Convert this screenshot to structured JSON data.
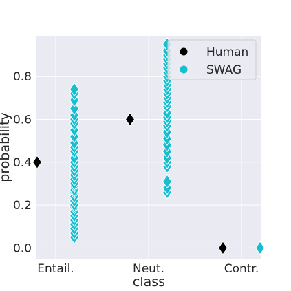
{
  "chart_data": {
    "type": "scatter",
    "xlabel": "class",
    "ylabel": "probability",
    "categories": [
      "Entail.",
      "Neut.",
      "Contr."
    ],
    "ylim": [
      -0.05,
      0.99
    ],
    "yticks": [
      0.0,
      0.2,
      0.4,
      0.6,
      0.8
    ],
    "ytick_labels": [
      "0.0",
      "0.2",
      "0.4",
      "0.6",
      "0.8"
    ],
    "grid": true,
    "legend_position": "top-right",
    "marker": "diamond",
    "series": [
      {
        "name": "Human",
        "color": "#000000",
        "x_offset": -0.2,
        "points": [
          {
            "category": "Entail.",
            "values": [
              0.4
            ]
          },
          {
            "category": "Neut.",
            "values": [
              0.6
            ]
          },
          {
            "category": "Contr.",
            "values": [
              0.0
            ]
          }
        ]
      },
      {
        "name": "SWAG",
        "color": "#17becf",
        "x_offset": 0.2,
        "points": [
          {
            "category": "Entail.",
            "values": [
              0.05,
              0.07,
              0.09,
              0.11,
              0.13,
              0.15,
              0.17,
              0.19,
              0.2,
              0.22,
              0.24,
              0.26,
              0.27,
              0.29,
              0.3,
              0.32,
              0.34,
              0.36,
              0.38,
              0.4,
              0.42,
              0.45,
              0.47,
              0.49,
              0.52,
              0.55,
              0.58,
              0.6,
              0.62,
              0.65,
              0.69,
              0.72,
              0.74
            ]
          },
          {
            "category": "Neut.",
            "values": [
              0.26,
              0.28,
              0.31,
              0.38,
              0.4,
              0.42,
              0.45,
              0.48,
              0.51,
              0.54,
              0.57,
              0.59,
              0.61,
              0.63,
              0.66,
              0.68,
              0.7,
              0.72,
              0.74,
              0.76,
              0.78,
              0.8,
              0.82,
              0.84,
              0.86,
              0.88,
              0.9,
              0.92,
              0.95
            ]
          },
          {
            "category": "Contr.",
            "values": [
              0.0
            ]
          }
        ]
      }
    ]
  }
}
